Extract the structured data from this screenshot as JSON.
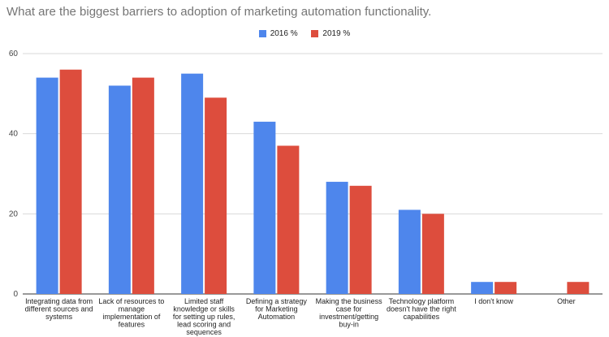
{
  "chart_data": {
    "type": "bar",
    "title": "What are the biggest barriers to adoption of marketing automation functionality.",
    "categories": [
      [
        "Integrating data from",
        "different sources and",
        "systems"
      ],
      [
        "Lack of resources to",
        "manage",
        "implementation of",
        "features"
      ],
      [
        "Limited staff",
        "knowledge or skills",
        "for setting up rules,",
        "lead scoring and",
        "sequences"
      ],
      [
        "Defining a strategy",
        "for Marketing",
        "Automation"
      ],
      [
        "Making the business",
        "case for",
        "investment/getting",
        "buy-in"
      ],
      [
        "Technology platform",
        "doesn't have the right",
        "capabilities"
      ],
      [
        "I don't know"
      ],
      [
        "Other"
      ]
    ],
    "series": [
      {
        "name": "2016 %",
        "color": "#4e86ec",
        "values": [
          54,
          52,
          55,
          43,
          28,
          21,
          3,
          0
        ]
      },
      {
        "name": "2019 %",
        "color": "#dd4d3d",
        "values": [
          56,
          54,
          49,
          37,
          27,
          20,
          3,
          3
        ]
      }
    ],
    "ylim": [
      0,
      60
    ],
    "yticks": [
      0,
      20,
      40,
      60
    ],
    "xlabel": "",
    "ylabel": "",
    "grid": true,
    "legend": "top-center"
  }
}
